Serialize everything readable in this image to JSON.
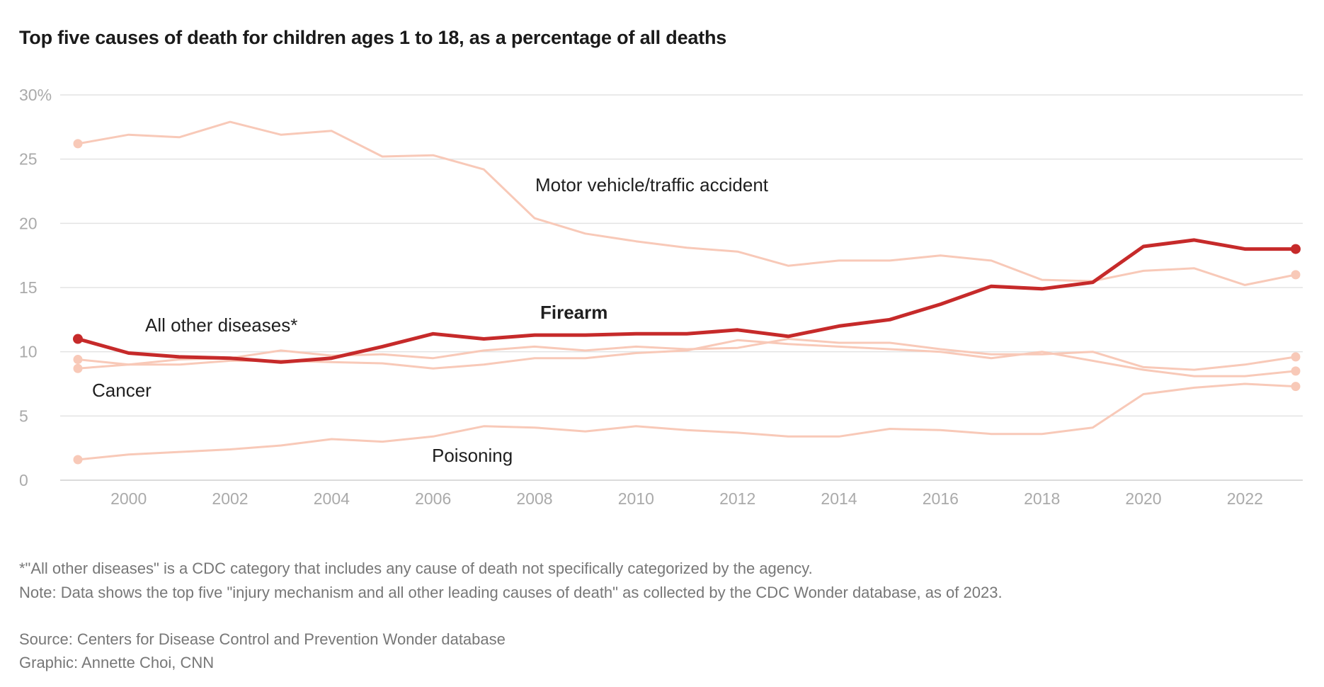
{
  "chart_data": {
    "type": "line",
    "title": "Top five causes of death for children ages 1 to 18, as a percentage of all deaths",
    "xlabel": "",
    "ylabel": "",
    "xlim": [
      1999,
      2023
    ],
    "ylim": [
      0,
      30
    ],
    "x_ticks": [
      2000,
      2002,
      2004,
      2006,
      2008,
      2010,
      2012,
      2014,
      2016,
      2018,
      2020,
      2022
    ],
    "y_ticks": [
      {
        "value": 0,
        "label": "0"
      },
      {
        "value": 5,
        "label": "5"
      },
      {
        "value": 10,
        "label": "10"
      },
      {
        "value": 15,
        "label": "15"
      },
      {
        "value": 20,
        "label": "20"
      },
      {
        "value": 25,
        "label": "25"
      },
      {
        "value": 30,
        "label": "30%"
      }
    ],
    "grid": "horizontal",
    "legend": "none (direct labels)",
    "colors": {
      "highlight": "#c62a2a",
      "muted": "#f8c9b8",
      "grid": "#e3e3e3"
    },
    "x": [
      1999,
      2000,
      2001,
      2002,
      2003,
      2004,
      2005,
      2006,
      2007,
      2008,
      2009,
      2010,
      2011,
      2012,
      2013,
      2014,
      2015,
      2016,
      2017,
      2018,
      2019,
      2020,
      2021,
      2022,
      2023
    ],
    "series": [
      {
        "name": "Motor vehicle/traffic accident",
        "highlight": false,
        "values": [
          26.2,
          26.9,
          26.7,
          27.9,
          26.9,
          27.2,
          25.2,
          25.3,
          24.2,
          20.4,
          19.2,
          18.6,
          18.1,
          17.8,
          16.7,
          17.1,
          17.1,
          17.5,
          17.1,
          15.6,
          15.5,
          16.3,
          16.5,
          15.2,
          16.0
        ]
      },
      {
        "name": "Firearm",
        "highlight": true,
        "values": [
          11.0,
          9.9,
          9.6,
          9.5,
          9.2,
          9.5,
          10.4,
          11.4,
          11.0,
          11.3,
          11.3,
          11.4,
          11.4,
          11.7,
          11.2,
          12.0,
          12.5,
          13.7,
          15.1,
          14.9,
          15.4,
          18.2,
          18.7,
          18.0,
          18.0
        ]
      },
      {
        "name": "All other diseases*",
        "highlight": false,
        "values": [
          9.4,
          9.0,
          9.4,
          9.5,
          10.1,
          9.7,
          9.8,
          9.5,
          10.1,
          10.4,
          10.1,
          10.4,
          10.2,
          10.3,
          11.0,
          10.7,
          10.7,
          10.2,
          9.8,
          9.8,
          10.0,
          8.8,
          8.6,
          9.0,
          9.6
        ]
      },
      {
        "name": "Cancer",
        "highlight": false,
        "values": [
          8.7,
          9.0,
          9.0,
          9.3,
          9.3,
          9.2,
          9.1,
          8.7,
          9.0,
          9.5,
          9.5,
          9.9,
          10.1,
          10.9,
          10.6,
          10.4,
          10.2,
          10.0,
          9.5,
          10.0,
          9.3,
          8.6,
          8.1,
          8.1,
          8.5
        ]
      },
      {
        "name": "Poisoning",
        "highlight": false,
        "values": [
          1.6,
          2.0,
          2.2,
          2.4,
          2.7,
          3.2,
          3.0,
          3.4,
          4.2,
          4.1,
          3.8,
          4.2,
          3.9,
          3.7,
          3.4,
          3.4,
          4.0,
          3.9,
          3.6,
          3.6,
          4.1,
          6.7,
          7.2,
          7.5,
          7.3
        ]
      }
    ]
  },
  "notes": {
    "footnote": "*\"All other diseases\" is a CDC category that includes any cause of death not specifically categorized by the agency.",
    "note": "Note: Data shows the top five \"injury mechanism and all other leading causes of death\" as collected by the CDC Wonder database, as of 2023.",
    "source": "Source: Centers for Disease Control and Prevention Wonder database",
    "credit": "Graphic: Annette Choi, CNN"
  }
}
